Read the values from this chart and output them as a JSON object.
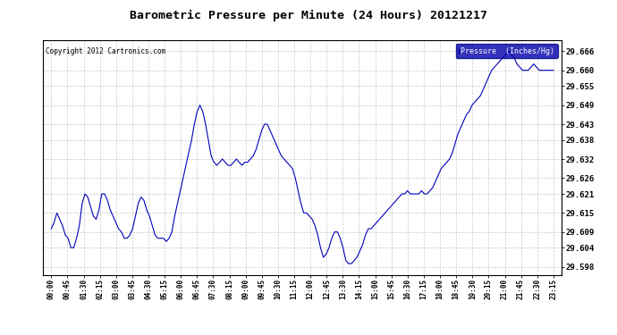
{
  "title": "Barometric Pressure per Minute (24 Hours) 20121217",
  "copyright": "Copyright 2012 Cartronics.com",
  "legend_label": "Pressure  (Inches/Hg)",
  "line_color": "#0000bb",
  "background_color": "#ffffff",
  "plot_bg_color": "#ffffff",
  "grid_color": "#bbbbbb",
  "yticks": [
    29.598,
    29.604,
    29.609,
    29.615,
    29.621,
    29.626,
    29.632,
    29.638,
    29.643,
    29.649,
    29.655,
    29.66,
    29.666
  ],
  "ylim": [
    29.5955,
    29.6695
  ],
  "xtick_labels": [
    "00:00",
    "00:45",
    "01:30",
    "02:15",
    "03:00",
    "03:45",
    "04:30",
    "05:15",
    "06:00",
    "06:45",
    "07:30",
    "08:15",
    "09:00",
    "09:45",
    "10:30",
    "11:15",
    "12:00",
    "12:45",
    "13:30",
    "14:15",
    "15:00",
    "15:45",
    "16:30",
    "17:15",
    "18:00",
    "18:45",
    "19:30",
    "20:15",
    "21:00",
    "21:45",
    "22:30",
    "23:15"
  ],
  "data_y": [
    29.61,
    29.612,
    29.615,
    29.613,
    29.611,
    29.608,
    29.607,
    29.604,
    29.604,
    29.607,
    29.611,
    29.618,
    29.621,
    29.62,
    29.617,
    29.614,
    29.613,
    29.616,
    29.621,
    29.621,
    29.619,
    29.616,
    29.614,
    29.612,
    29.61,
    29.609,
    29.607,
    29.607,
    29.608,
    29.61,
    29.614,
    29.618,
    29.62,
    29.619,
    29.616,
    29.614,
    29.611,
    29.608,
    29.607,
    29.607,
    29.607,
    29.606,
    29.607,
    29.609,
    29.614,
    29.618,
    29.622,
    29.626,
    29.63,
    29.634,
    29.638,
    29.643,
    29.647,
    29.649,
    29.647,
    29.643,
    29.638,
    29.633,
    29.631,
    29.63,
    29.631,
    29.632,
    29.631,
    29.63,
    29.63,
    29.631,
    29.632,
    29.631,
    29.63,
    29.631,
    29.631,
    29.632,
    29.633,
    29.635,
    29.638,
    29.641,
    29.643,
    29.643,
    29.641,
    29.639,
    29.637,
    29.635,
    29.633,
    29.632,
    29.631,
    29.63,
    29.629,
    29.626,
    29.622,
    29.618,
    29.615,
    29.615,
    29.614,
    29.613,
    29.611,
    29.608,
    29.604,
    29.601,
    29.602,
    29.604,
    29.607,
    29.609,
    29.609,
    29.607,
    29.604,
    29.6,
    29.599,
    29.599,
    29.6,
    29.601,
    29.603,
    29.605,
    29.608,
    29.61,
    29.61,
    29.611,
    29.612,
    29.613,
    29.614,
    29.615,
    29.616,
    29.617,
    29.618,
    29.619,
    29.62,
    29.621,
    29.621,
    29.622,
    29.621,
    29.621,
    29.621,
    29.621,
    29.622,
    29.621,
    29.621,
    29.622,
    29.623,
    29.625,
    29.627,
    29.629,
    29.63,
    29.631,
    29.632,
    29.634,
    29.637,
    29.64,
    29.642,
    29.644,
    29.646,
    29.647,
    29.649,
    29.65,
    29.651,
    29.652,
    29.654,
    29.656,
    29.658,
    29.66,
    29.661,
    29.662,
    29.663,
    29.664,
    29.665,
    29.666,
    29.665,
    29.664,
    29.662,
    29.661,
    29.66,
    29.66,
    29.66,
    29.661,
    29.662,
    29.661,
    29.66,
    29.66,
    29.66,
    29.66,
    29.66,
    29.66
  ]
}
